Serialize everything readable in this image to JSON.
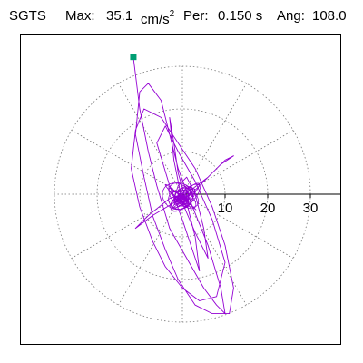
{
  "header": {
    "station": "SGTS",
    "max_label": "Max:",
    "max_value": "35.1",
    "max_unit": "cm/s",
    "max_unit_exp": "2",
    "per_label": "Per:",
    "per_value": "0.150 s",
    "ang_label": "Ang:",
    "ang_value": "108.0"
  },
  "chart_data": {
    "type": "scatter",
    "title": "",
    "xlabel": "",
    "ylabel": "",
    "radial_ticks": [
      10,
      20,
      30
    ],
    "rmax": 37.5,
    "angular_grid_deg": 30,
    "grid": true,
    "line_color": "#9400d3",
    "marker_color": "#009e73",
    "start_marker": {
      "x": -11.5,
      "y": 32.2
    },
    "peak": {
      "value": 35.1,
      "angle_deg": 108.0
    },
    "path": [
      [
        -11.5,
        32.2
      ],
      [
        -10,
        20
      ],
      [
        -8,
        10
      ],
      [
        -6,
        2
      ],
      [
        -3,
        -8
      ],
      [
        1,
        -15
      ],
      [
        5,
        -22
      ],
      [
        8,
        -26
      ],
      [
        10,
        -28
      ],
      [
        9,
        -22
      ],
      [
        6,
        -12
      ],
      [
        2,
        -2
      ],
      [
        -1,
        6
      ],
      [
        -3,
        14
      ],
      [
        -5,
        22
      ],
      [
        -8,
        26
      ],
      [
        -10,
        24
      ],
      [
        -11,
        14
      ],
      [
        -9,
        4
      ],
      [
        -7,
        -5
      ],
      [
        -4,
        -13
      ],
      [
        -1,
        -20
      ],
      [
        3,
        -26
      ],
      [
        7,
        -28
      ],
      [
        11,
        -28
      ],
      [
        12,
        -22
      ],
      [
        10,
        -12
      ],
      [
        7,
        -3
      ],
      [
        3,
        6
      ],
      [
        -1,
        12
      ],
      [
        -5,
        18
      ],
      [
        -9,
        20
      ],
      [
        -11,
        15
      ],
      [
        -12,
        6
      ],
      [
        -10,
        -3
      ],
      [
        -7,
        -11
      ],
      [
        -4,
        -17
      ],
      [
        0,
        -22
      ],
      [
        4,
        -25
      ],
      [
        8,
        -24
      ],
      [
        10,
        -16
      ],
      [
        7,
        -6
      ],
      [
        3,
        3
      ],
      [
        -1,
        10
      ],
      [
        -4,
        16
      ],
      [
        -6,
        12
      ],
      [
        -3,
        2
      ],
      [
        0,
        -6
      ],
      [
        2,
        -12
      ],
      [
        4,
        -18
      ],
      [
        3,
        -10
      ],
      [
        1,
        -2
      ],
      [
        -1,
        5
      ],
      [
        -2,
        12
      ],
      [
        -3,
        18
      ],
      [
        -2,
        8
      ],
      [
        0,
        -2
      ],
      [
        3,
        -9
      ],
      [
        6,
        -15
      ],
      [
        5,
        -8
      ],
      [
        3,
        0
      ],
      [
        1,
        4
      ],
      [
        -1,
        2
      ],
      [
        -2,
        -1
      ],
      [
        -1,
        -3
      ],
      [
        1,
        -2
      ],
      [
        2,
        1
      ],
      [
        1,
        2
      ],
      [
        -1,
        1
      ],
      [
        -1,
        -1
      ],
      [
        0,
        -2
      ],
      [
        1,
        -1
      ],
      [
        5,
        3
      ],
      [
        9,
        7
      ],
      [
        12,
        9
      ],
      [
        10,
        8
      ],
      [
        6,
        4
      ],
      [
        2,
        1
      ],
      [
        -2,
        -2
      ],
      [
        -7,
        -5
      ],
      [
        -11,
        -8
      ],
      [
        -8,
        -5
      ],
      [
        -3,
        -1
      ],
      [
        0,
        0
      ]
    ]
  }
}
